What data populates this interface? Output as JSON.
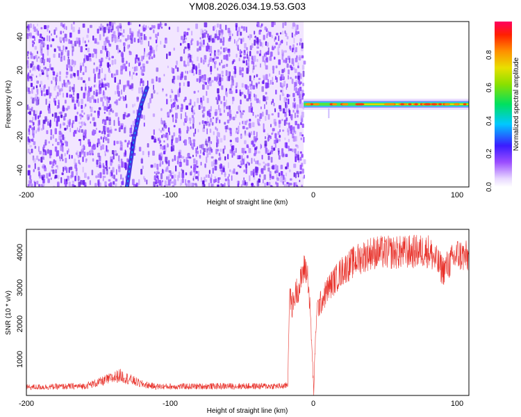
{
  "figure": {
    "title": "YM08.2026.034.19.53.G03"
  },
  "chart_data": [
    {
      "type": "heatmap",
      "title": "YM08.2026.034.19.53.G03",
      "xlabel": "Height of straight line (km)",
      "ylabel": "Frequency (Hz)",
      "xlim": [
        -200,
        108
      ],
      "ylim": [
        -50,
        50
      ],
      "x_ticks": [
        "-200",
        "-100",
        "0",
        "100"
      ],
      "y_ticks": [
        "-40",
        "-20",
        "0",
        "20",
        "40"
      ],
      "colorbar": {
        "label": "Normalized spectral amplitude",
        "range": [
          0,
          1
        ],
        "ticks": [
          "0.0",
          "0.2",
          "0.4",
          "0.6",
          "0.8"
        ]
      },
      "features": {
        "noise_region_x": [
          -200,
          -7
        ],
        "diagonal_trace": {
          "x": [
            -130,
            -125,
            -120,
            -116
          ],
          "y": [
            -50,
            -20,
            0,
            10
          ]
        },
        "carrier_line": {
          "x": [
            -7,
            108
          ],
          "y": 0
        }
      }
    },
    {
      "type": "line",
      "xlabel": "Height of straight line (km)",
      "ylabel": "SNR (10 * v/v)",
      "xlim": [
        -200,
        108
      ],
      "ylim": [
        0,
        4650
      ],
      "x_ticks": [
        "-200",
        "-100",
        "0",
        "100"
      ],
      "y_ticks": [
        "1000",
        "2000",
        "3000",
        "4000"
      ],
      "series": [
        {
          "color": "#e8312a",
          "x": [
            -200,
            -160,
            -150,
            -140,
            -135,
            -130,
            -120,
            -110,
            -100,
            -60,
            -20,
            -18,
            -17,
            -15,
            -12,
            -10,
            -8,
            -6,
            -4,
            -2,
            -1,
            0,
            2,
            5,
            10,
            20,
            30,
            40,
            60,
            80,
            90,
            100,
            108
          ],
          "y": [
            230,
            260,
            360,
            490,
            560,
            480,
            320,
            250,
            250,
            260,
            260,
            320,
            2800,
            2500,
            2950,
            3000,
            3400,
            3600,
            3300,
            2000,
            1000,
            100,
            2400,
            2600,
            3000,
            3500,
            3800,
            4000,
            4000,
            4050,
            3500,
            3950,
            3850
          ]
        }
      ]
    }
  ]
}
